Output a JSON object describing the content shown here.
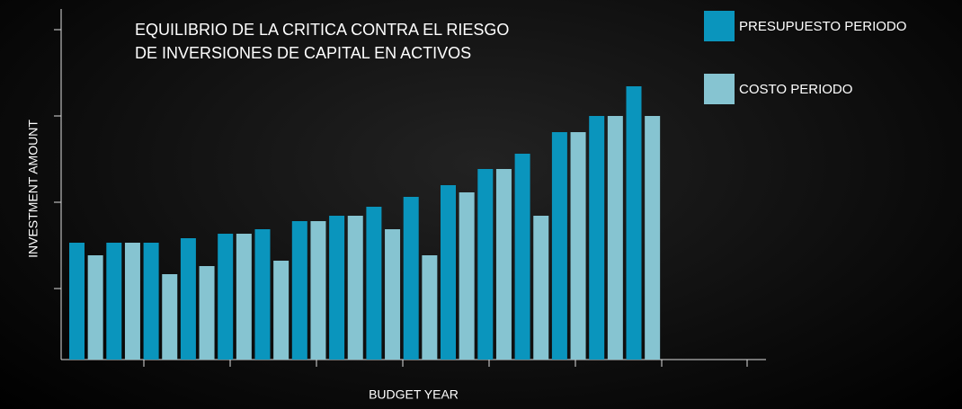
{
  "chart_data": {
    "type": "bar",
    "title": [
      "EQUILIBRIO DE LA CRITICA CONTRA EL RIESGO",
      "DE INVERSIONES DE CAPITAL EN ACTIVOS"
    ],
    "x_label": "BUDGET YEAR",
    "y_label": "INVESTMENT AMOUNT",
    "categories": [
      null,
      null,
      null,
      null,
      null,
      null,
      null,
      null,
      null,
      null,
      null,
      null,
      null,
      null,
      null,
      null
    ],
    "series": [
      {
        "name": "PRESUPUESTO PERIODO",
        "color": "#0a95bd",
        "values": [
          130,
          130,
          130,
          135,
          140,
          145,
          154,
          160,
          170,
          181,
          194,
          212,
          229,
          253,
          271,
          304
        ]
      },
      {
        "name": "COSTO PERIODO",
        "color": "#86c4d1",
        "values": [
          116,
          130,
          95,
          104,
          140,
          110,
          154,
          160,
          145,
          116,
          186,
          212,
          160,
          253,
          271,
          271
        ]
      }
    ],
    "ylim": [
      0,
      390
    ],
    "yticks": [
      79,
      175,
      271,
      367
    ],
    "legend": "top-right"
  }
}
